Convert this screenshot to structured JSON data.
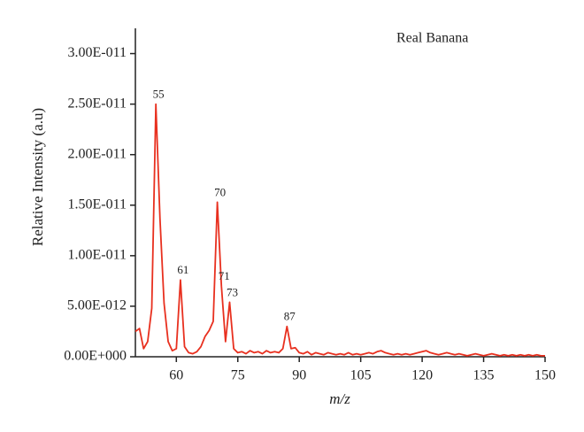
{
  "chart_data": {
    "type": "line",
    "xlabel": "m/z",
    "ylabel": "Relative Intensity (a.u)",
    "x": [
      50,
      51,
      52,
      53,
      54,
      55,
      56,
      57,
      58,
      59,
      60,
      61,
      62,
      63,
      64,
      65,
      66,
      67,
      68,
      69,
      70,
      71,
      72,
      73,
      74,
      75,
      76,
      77,
      78,
      79,
      80,
      81,
      82,
      83,
      84,
      85,
      86,
      87,
      88,
      89,
      90,
      91,
      92,
      93,
      94,
      95,
      96,
      97,
      98,
      99,
      100,
      101,
      102,
      103,
      104,
      105,
      106,
      107,
      108,
      109,
      110,
      111,
      112,
      113,
      114,
      115,
      116,
      117,
      118,
      119,
      120,
      121,
      122,
      123,
      124,
      125,
      126,
      127,
      128,
      129,
      130,
      131,
      132,
      133,
      134,
      135,
      136,
      137,
      138,
      139,
      140,
      141,
      142,
      143,
      144,
      145,
      146,
      147,
      148,
      149,
      150
    ],
    "series": [
      {
        "name": "Real Banana",
        "color": "#e8301f",
        "values": [
          2.5e-12,
          2.8e-12,
          8e-13,
          1.5e-12,
          4.8e-12,
          2.5e-11,
          1.37e-11,
          5.3e-12,
          1.5e-12,
          6e-13,
          8e-13,
          7.6e-12,
          1e-12,
          4e-13,
          3e-13,
          5e-13,
          1e-12,
          2e-12,
          2.6e-12,
          3.5e-12,
          1.53e-11,
          7e-12,
          1.5e-12,
          5.4e-12,
          8e-13,
          4e-13,
          5e-13,
          3e-13,
          6e-13,
          4e-13,
          5e-13,
          3e-13,
          6e-13,
          4e-13,
          5e-13,
          4e-13,
          8e-13,
          3e-12,
          8e-13,
          9e-13,
          4e-13,
          3e-13,
          5e-13,
          2e-13,
          4e-13,
          3e-13,
          2e-13,
          4e-13,
          3e-13,
          2e-13,
          3e-13,
          2e-13,
          4e-13,
          2e-13,
          3e-13,
          2e-13,
          3e-13,
          4e-13,
          3e-13,
          5e-13,
          6e-13,
          4e-13,
          3e-13,
          2e-13,
          3e-13,
          2e-13,
          3e-13,
          2e-13,
          3e-13,
          4e-13,
          5e-13,
          6e-13,
          4e-13,
          3e-13,
          2e-13,
          3e-13,
          4e-13,
          3e-13,
          2e-13,
          3e-13,
          2e-13,
          1e-13,
          2e-13,
          3e-13,
          2e-13,
          1e-13,
          2e-13,
          3e-13,
          2e-13,
          1e-13,
          2e-13,
          1e-13,
          2e-13,
          1e-13,
          2e-13,
          1e-13,
          2e-13,
          1e-13,
          2e-13,
          1e-13,
          1e-13
        ]
      }
    ],
    "annotations": [
      {
        "text": "55",
        "x": 55
      },
      {
        "text": "61",
        "x": 61
      },
      {
        "text": "70",
        "x": 70
      },
      {
        "text": "71",
        "x": 71
      },
      {
        "text": "73",
        "x": 73
      },
      {
        "text": "87",
        "x": 87
      }
    ],
    "xlim": [
      50,
      150
    ],
    "xticks": [
      60,
      75,
      90,
      105,
      120,
      135,
      150
    ],
    "ylim": [
      0,
      3.25e-11
    ],
    "yticks": [
      {
        "value": 0,
        "label": "0.00E+000"
      },
      {
        "value": 5e-12,
        "label": "5.00E-012"
      },
      {
        "value": 1e-11,
        "label": "1.00E-011"
      },
      {
        "value": 1.5e-11,
        "label": "1.50E-011"
      },
      {
        "value": 2e-11,
        "label": "2.00E-011"
      },
      {
        "value": 2.5e-11,
        "label": "2.50E-011"
      },
      {
        "value": 3e-11,
        "label": "3.00E-011"
      }
    ],
    "grid": false
  }
}
